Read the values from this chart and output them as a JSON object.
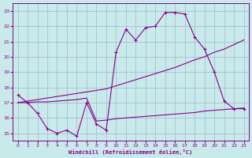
{
  "xlabel": "Windchill (Refroidissement éolien,°C)",
  "xlim": [
    -0.5,
    23.5
  ],
  "ylim": [
    14.5,
    23.5
  ],
  "yticks": [
    15,
    16,
    17,
    18,
    19,
    20,
    21,
    22,
    23
  ],
  "xticks": [
    0,
    1,
    2,
    3,
    4,
    5,
    6,
    7,
    8,
    9,
    10,
    11,
    12,
    13,
    14,
    15,
    16,
    17,
    18,
    19,
    20,
    21,
    22,
    23
  ],
  "bg_color": "#c8eaea",
  "line_color": "#880088",
  "grid_color": "#99aacc",
  "line1_y": [
    17.5,
    17.0,
    16.3,
    15.3,
    15.0,
    15.2,
    14.8,
    17.0,
    15.6,
    15.2,
    20.3,
    21.8,
    21.1,
    21.9,
    22.0,
    22.9,
    22.9,
    22.8,
    21.3,
    20.5,
    19.0,
    17.1,
    16.6,
    16.6
  ],
  "line2_y": [
    17.0,
    17.1,
    17.2,
    17.3,
    17.4,
    17.5,
    17.6,
    17.7,
    17.8,
    17.9,
    18.1,
    18.3,
    18.5,
    18.7,
    18.9,
    19.1,
    19.3,
    19.55,
    19.8,
    20.0,
    20.3,
    20.5,
    20.8,
    21.1
  ],
  "line3_y": [
    17.0,
    17.0,
    17.05,
    17.05,
    17.1,
    17.15,
    17.2,
    17.3,
    15.8,
    15.85,
    15.95,
    16.0,
    16.05,
    16.1,
    16.15,
    16.2,
    16.25,
    16.3,
    16.35,
    16.45,
    16.5,
    16.55,
    16.6,
    16.65
  ]
}
